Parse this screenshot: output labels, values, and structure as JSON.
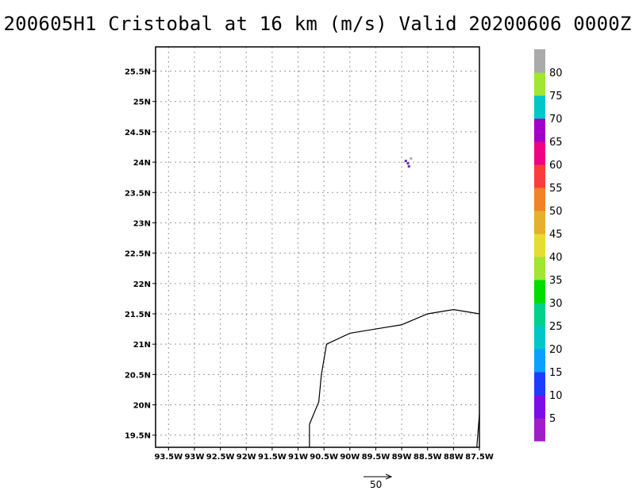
{
  "title": "200605H1 Cristobal at 16 km (m/s) Valid 20200606 0000Z",
  "map": {
    "lon_range": [
      -93.75,
      -87.5
    ],
    "lat_range": [
      19.3,
      25.9
    ],
    "x_ticks": [
      {
        "lon": -93.5,
        "label": "93.5W"
      },
      {
        "lon": -93.0,
        "label": "93W"
      },
      {
        "lon": -92.5,
        "label": "92.5W"
      },
      {
        "lon": -92.0,
        "label": "92W"
      },
      {
        "lon": -91.5,
        "label": "91.5W"
      },
      {
        "lon": -91.0,
        "label": "91W"
      },
      {
        "lon": -90.5,
        "label": "90.5W"
      },
      {
        "lon": -90.0,
        "label": "90W"
      },
      {
        "lon": -89.5,
        "label": "89.5W"
      },
      {
        "lon": -89.0,
        "label": "89W"
      },
      {
        "lon": -88.5,
        "label": "88.5W"
      },
      {
        "lon": -88.0,
        "label": "88W"
      },
      {
        "lon": -87.5,
        "label": "87.5W"
      }
    ],
    "y_ticks": [
      {
        "lat": 19.5,
        "label": "19.5N"
      },
      {
        "lat": 20.0,
        "label": "20N"
      },
      {
        "lat": 20.5,
        "label": "20.5N"
      },
      {
        "lat": 21.0,
        "label": "21N"
      },
      {
        "lat": 21.5,
        "label": "21.5N"
      },
      {
        "lat": 22.0,
        "label": "22N"
      },
      {
        "lat": 22.5,
        "label": "22.5N"
      },
      {
        "lat": 23.0,
        "label": "23N"
      },
      {
        "lat": 23.5,
        "label": "23.5N"
      },
      {
        "lat": 24.0,
        "label": "24N"
      },
      {
        "lat": 24.5,
        "label": "24.5N"
      },
      {
        "lat": 25.0,
        "label": "25N"
      },
      {
        "lat": 25.5,
        "label": "25.5N"
      }
    ],
    "grid": true,
    "coastline": [
      [
        -90.78,
        19.3
      ],
      [
        -90.78,
        19.68
      ],
      [
        -90.6,
        20.05
      ],
      [
        -90.55,
        20.5
      ],
      [
        -90.45,
        21.0
      ],
      [
        -90.0,
        21.18
      ],
      [
        -89.5,
        21.25
      ],
      [
        -89.0,
        21.32
      ],
      [
        -88.5,
        21.5
      ],
      [
        -88.0,
        21.57
      ],
      [
        -87.5,
        21.5
      ]
    ],
    "coastline_east": [
      [
        -87.55,
        19.3
      ],
      [
        -87.5,
        19.85
      ]
    ],
    "wind_cells": [
      {
        "lon": -88.92,
        "lat": 24.02,
        "color": "#6d2bb1"
      },
      {
        "lon": -88.88,
        "lat": 23.98,
        "color": "#6d2bb1"
      },
      {
        "lon": -88.86,
        "lat": 23.93,
        "color": "#6d2bb1"
      },
      {
        "lon": -88.82,
        "lat": 24.06,
        "color": "#aaaaaa"
      }
    ]
  },
  "colorbar": {
    "labels": [
      "5",
      "10",
      "15",
      "20",
      "25",
      "30",
      "35",
      "40",
      "45",
      "50",
      "55",
      "60",
      "65",
      "70",
      "75",
      "80"
    ],
    "colors": [
      "#a01ec8",
      "#7d0ce6",
      "#1e3cff",
      "#0aa0ff",
      "#00c8c8",
      "#00d28c",
      "#00dc00",
      "#a0e632",
      "#e6dc32",
      "#e6af2d",
      "#f08228",
      "#fa3c3c",
      "#f00082",
      "#a000c8",
      "#00c8c8",
      "#a0e632",
      "#aaaaaa"
    ]
  },
  "reference_vector": {
    "label": "50"
  }
}
